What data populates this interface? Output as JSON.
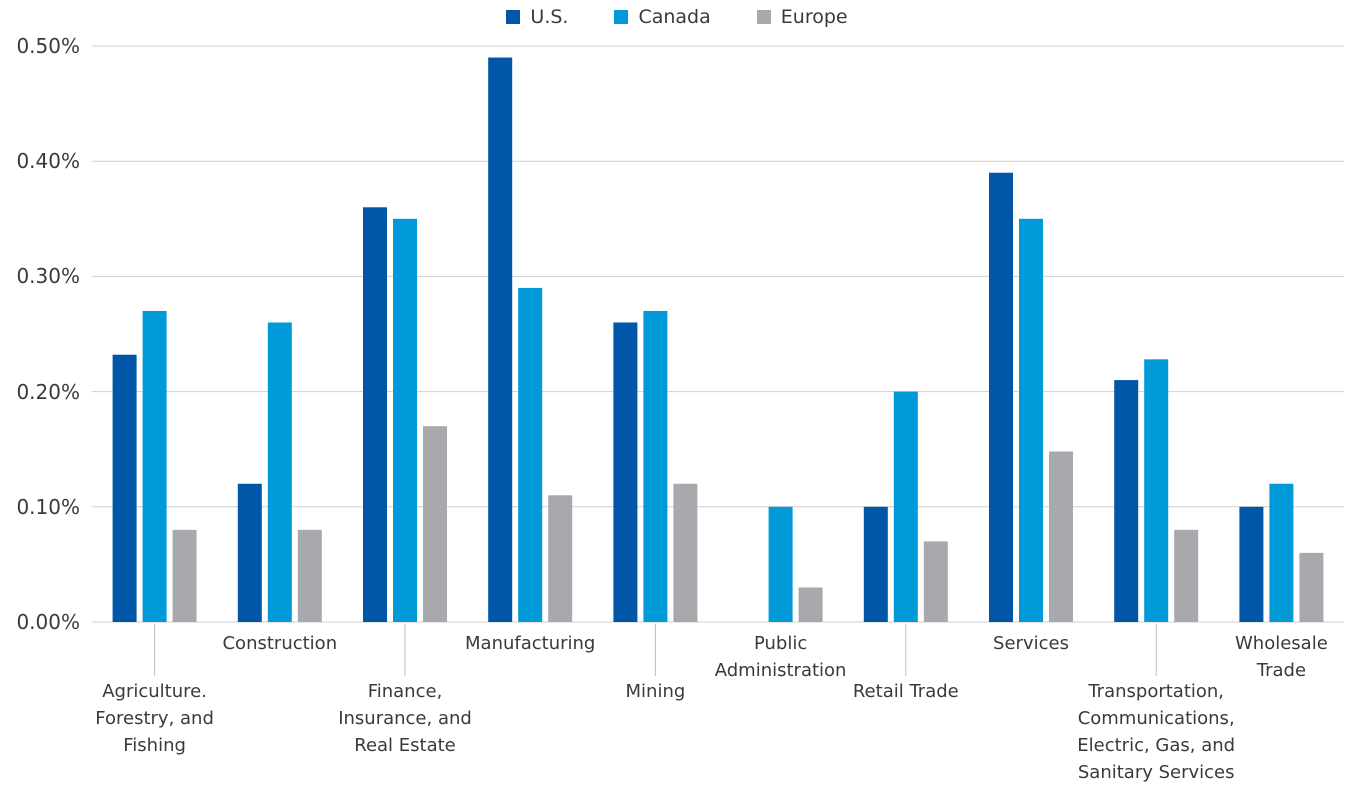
{
  "chart_data": {
    "type": "bar",
    "categories": [
      "Agriculture. Forestry, and Fishing",
      "Construction",
      "Finance, Insurance, and Real Estate",
      "Manufacturing",
      "Mining",
      "Public Administration",
      "Retail Trade",
      "Services",
      "Transportation, Communications, Electric, Gas, and Sanitary Services",
      "Wholesale Trade"
    ],
    "category_label_lines": [
      [
        "Agriculture.",
        "Forestry, and",
        "Fishing"
      ],
      [
        "Construction"
      ],
      [
        "Finance,",
        "Insurance, and",
        "Real Estate"
      ],
      [
        "Manufacturing"
      ],
      [
        "Mining"
      ],
      [
        "Public",
        "Administration"
      ],
      [
        "Retail Trade"
      ],
      [
        "Services"
      ],
      [
        "Transportation,",
        "Communications,",
        "Electric, Gas, and",
        "Sanitary Services"
      ],
      [
        "Wholesale",
        "Trade"
      ]
    ],
    "series": [
      {
        "name": "U.S.",
        "color": "#0057a8",
        "values": [
          0.232,
          0.12,
          0.36,
          0.49,
          0.26,
          0.0,
          0.1,
          0.39,
          0.21,
          0.1
        ]
      },
      {
        "name": "Canada",
        "color": "#009ad8",
        "values": [
          0.27,
          0.26,
          0.35,
          0.29,
          0.27,
          0.1,
          0.2,
          0.35,
          0.228,
          0.12
        ]
      },
      {
        "name": "Europe",
        "color": "#a8a9ad",
        "values": [
          0.08,
          0.08,
          0.17,
          0.11,
          0.12,
          0.03,
          0.07,
          0.148,
          0.08,
          0.06
        ]
      }
    ],
    "ylim": [
      0,
      0.5
    ],
    "yticks": [
      {
        "value": 0.0,
        "label": "0.00%"
      },
      {
        "value": 0.1,
        "label": "0.10%"
      },
      {
        "value": 0.2,
        "label": "0.20%"
      },
      {
        "value": 0.3,
        "label": "0.30%"
      },
      {
        "value": 0.4,
        "label": "0.40%"
      },
      {
        "value": 0.5,
        "label": "0.50%"
      }
    ],
    "title": "",
    "xlabel": "",
    "ylabel": "",
    "grid": true,
    "legend_position": "top-center"
  }
}
